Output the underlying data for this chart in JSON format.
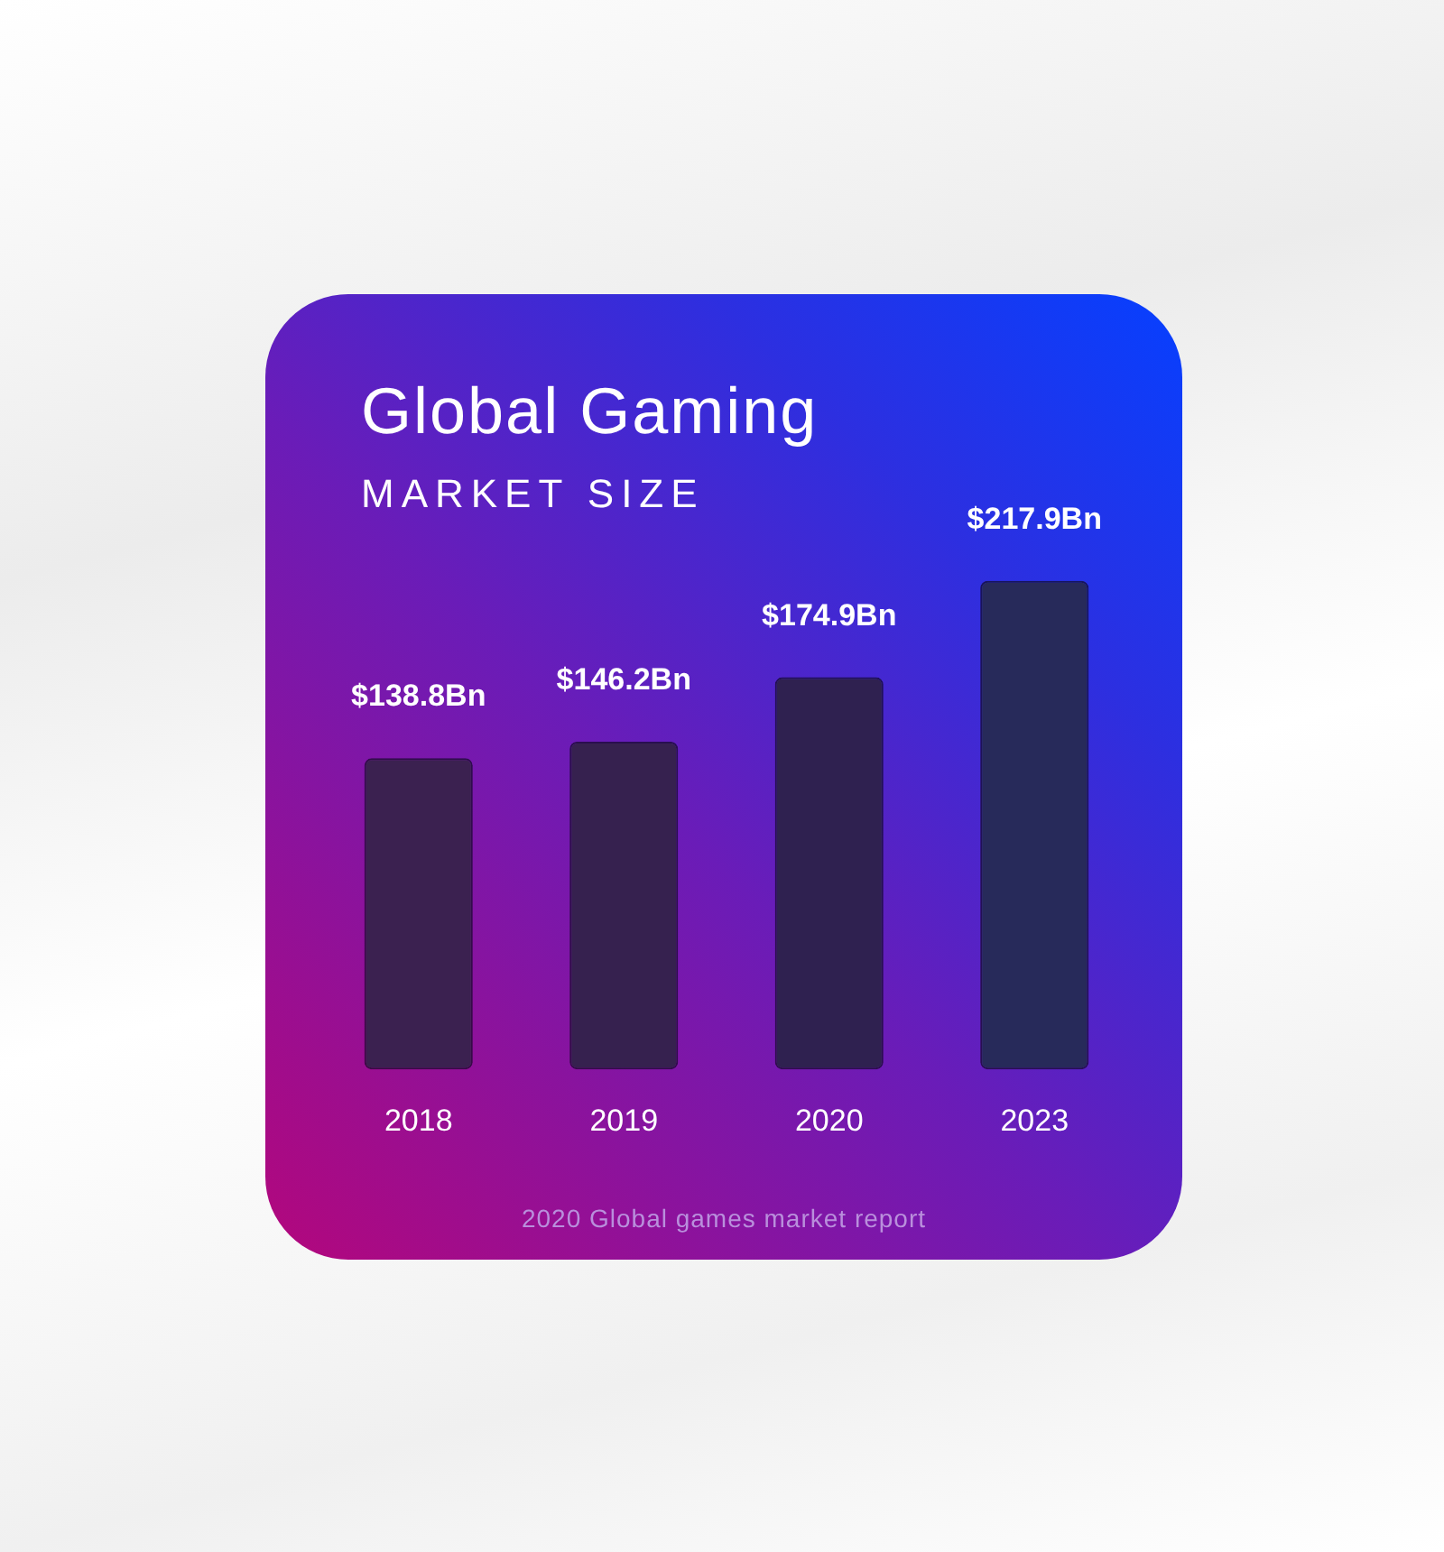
{
  "chart_data": {
    "type": "bar",
    "title": "Global Gaming",
    "subtitle": "MARKET SIZE",
    "categories": [
      "2018",
      "2019",
      "2020",
      "2023"
    ],
    "values": [
      138.8,
      146.2,
      174.9,
      217.9
    ],
    "colors": [
      "#3b2150",
      "#36214f",
      "#2f2150",
      "#272a5a"
    ],
    "value_labels": [
      "$138.8Bn",
      "$146.2Bn",
      "$174.9Bn",
      "$217.9Bn"
    ],
    "annotations": [
      "2020 Global games market report"
    ]
  }
}
